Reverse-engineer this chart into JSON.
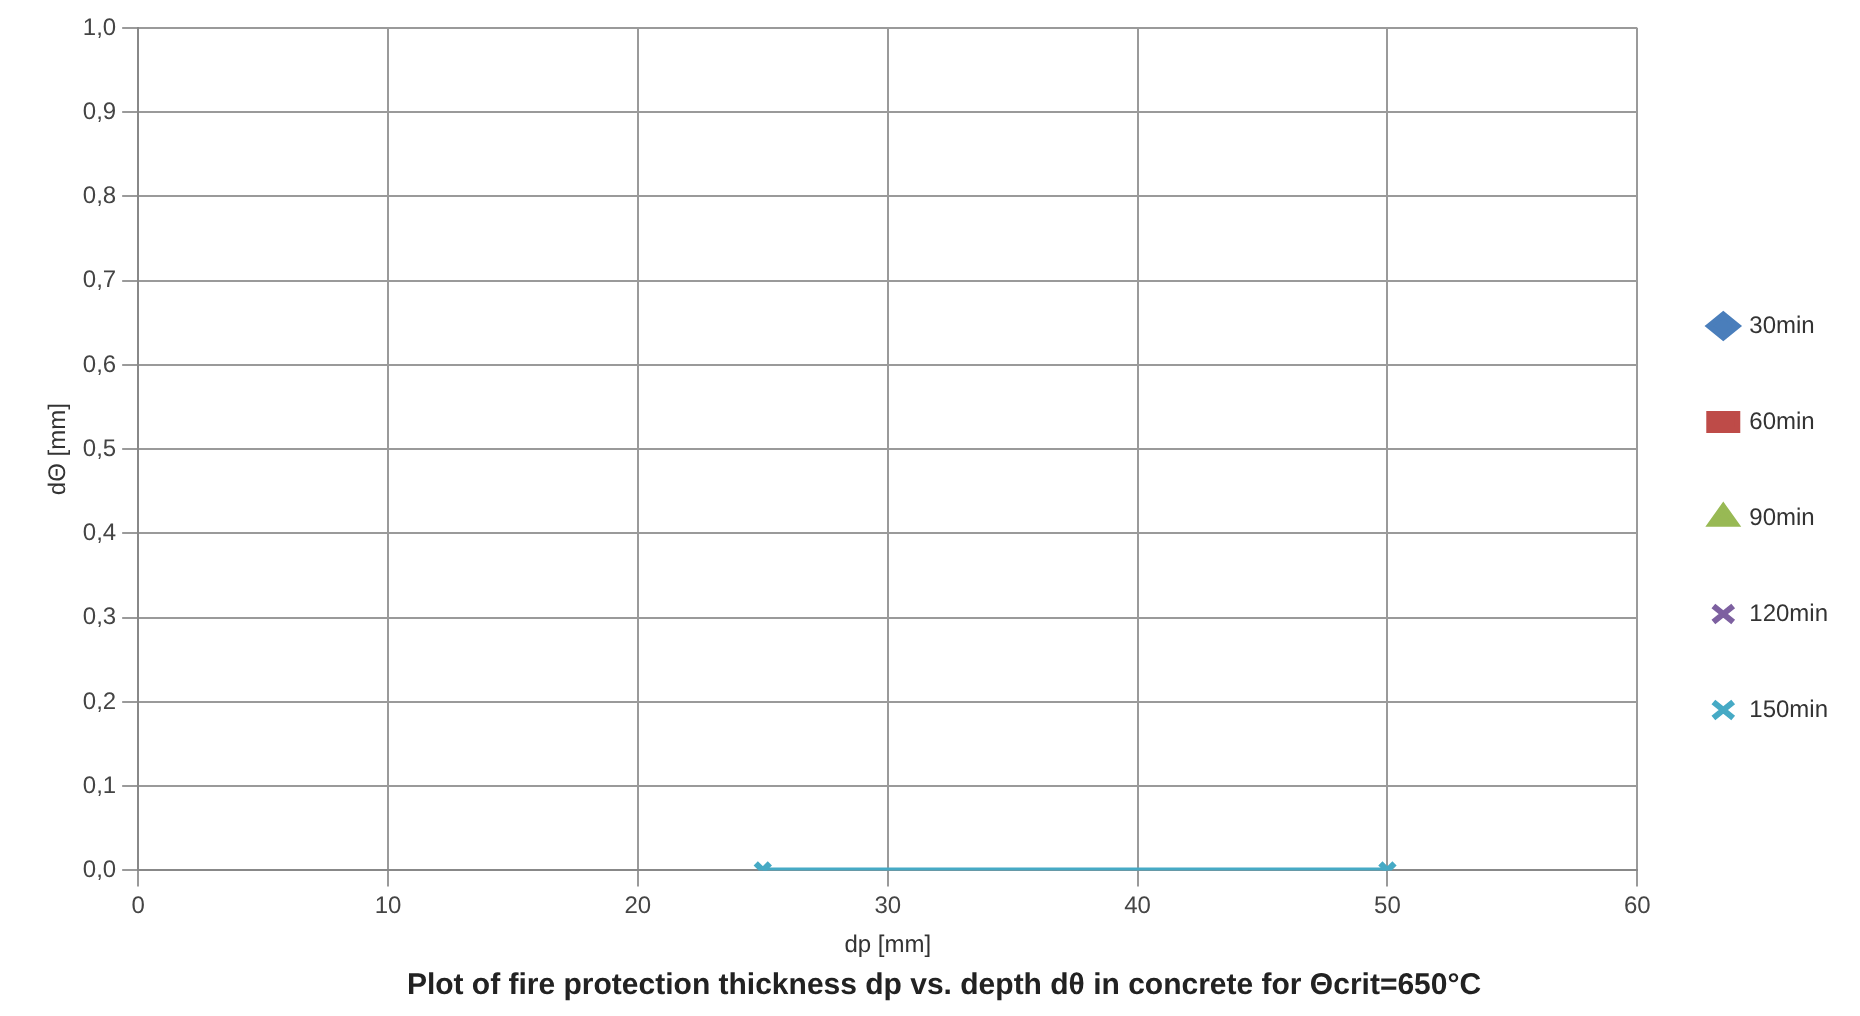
{
  "chart_data": {
    "type": "line",
    "title": "Plot of fire protection thickness dp vs. depth dθ in concrete for Θcrit=650°C",
    "xlabel": "dp [mm]",
    "ylabel": "dΘ [mm]",
    "x": [
      25,
      50
    ],
    "series": [
      {
        "name": "30min",
        "color": "#4a7ebb",
        "marker": "diamond",
        "values": [
          null,
          null
        ]
      },
      {
        "name": "60min",
        "color": "#be4b48",
        "marker": "square",
        "values": [
          null,
          null
        ]
      },
      {
        "name": "90min",
        "color": "#98b954",
        "marker": "triangle",
        "values": [
          null,
          null
        ]
      },
      {
        "name": "120min",
        "color": "#7d60a0",
        "marker": "cross",
        "values": [
          null,
          null
        ]
      },
      {
        "name": "150min",
        "color": "#46aac5",
        "marker": "cross",
        "values": [
          0,
          0
        ]
      }
    ],
    "xlim": [
      0,
      60
    ],
    "xticks": [
      0,
      10,
      20,
      30,
      40,
      50,
      60
    ],
    "ylim": [
      0,
      1
    ],
    "yticks": [
      {
        "value": 0,
        "label": "0,0"
      },
      {
        "value": 0.1,
        "label": "0,1"
      },
      {
        "value": 0.2,
        "label": "0,2"
      },
      {
        "value": 0.3,
        "label": "0,3"
      },
      {
        "value": 0.4,
        "label": "0,4"
      },
      {
        "value": 0.5,
        "label": "0,5"
      },
      {
        "value": 0.6,
        "label": "0,6"
      },
      {
        "value": 0.7,
        "label": "0,7"
      },
      {
        "value": 0.8,
        "label": "0,8"
      },
      {
        "value": 0.9,
        "label": "0,9"
      },
      {
        "value": 1,
        "label": "1,0"
      }
    ],
    "grid": true,
    "legend": "right",
    "line_style": "solid"
  }
}
